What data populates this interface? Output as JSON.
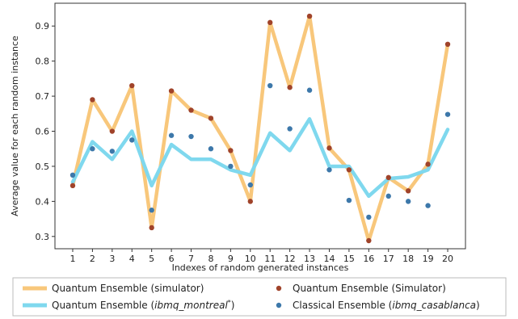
{
  "chart_data": {
    "type": "line",
    "title": "",
    "xlabel": "Indexes of random generated instances",
    "ylabel": "Average value for each random instance",
    "x": [
      1,
      2,
      3,
      4,
      5,
      6,
      7,
      8,
      9,
      10,
      11,
      12,
      13,
      14,
      15,
      16,
      17,
      18,
      19,
      20
    ],
    "x_ticks": [
      "1",
      "2",
      "3",
      "4",
      "5",
      "6",
      "7",
      "8",
      "9",
      "10",
      "11",
      "12",
      "13",
      "14",
      "15",
      "16",
      "17",
      "18",
      "19",
      "20"
    ],
    "y_ticks": [
      "0.3",
      "0.4",
      "0.5",
      "0.6",
      "0.7",
      "0.8",
      "0.9"
    ],
    "y_tick_values": [
      0.3,
      0.4,
      0.5,
      0.6,
      0.7,
      0.8,
      0.9
    ],
    "xlim": [
      0.1,
      20.9
    ],
    "ylim": [
      0.265,
      0.965
    ],
    "grid": false,
    "legend_position": "bottom, outside the plot",
    "series": [
      {
        "name": "Quantum Ensemble (simulator)",
        "kind": "line",
        "color": "#f8c77b",
        "values": [
          0.445,
          0.69,
          0.6,
          0.73,
          0.325,
          0.715,
          0.66,
          0.637,
          0.545,
          0.4,
          0.91,
          0.725,
          0.928,
          0.552,
          0.49,
          0.288,
          0.468,
          0.43,
          0.506,
          0.848
        ]
      },
      {
        "name": "Quantum Ensemble (ibmq_montreal*)",
        "kind": "line",
        "color": "#7fd8ee",
        "values": [
          0.455,
          0.57,
          0.52,
          0.6,
          0.445,
          0.562,
          0.52,
          0.52,
          0.49,
          0.475,
          0.595,
          0.545,
          0.635,
          0.5,
          0.5,
          0.415,
          0.465,
          0.47,
          0.49,
          0.605
        ]
      },
      {
        "name": "Quantum Ensemble (Simulator)",
        "kind": "scatter",
        "color": "#a0432a",
        "values": [
          0.445,
          0.69,
          0.6,
          0.73,
          0.325,
          0.715,
          0.66,
          0.637,
          0.545,
          0.4,
          0.91,
          0.725,
          0.928,
          0.552,
          0.49,
          0.288,
          0.468,
          0.43,
          0.506,
          0.848
        ]
      },
      {
        "name": "Classical Ensemble (ibmq_casablanca)",
        "kind": "scatter",
        "color": "#3d78aa",
        "values": [
          0.475,
          0.55,
          0.543,
          0.575,
          0.375,
          0.588,
          0.585,
          0.55,
          0.5,
          0.447,
          0.73,
          0.607,
          0.717,
          0.49,
          0.403,
          0.355,
          0.415,
          0.4,
          0.388,
          0.648
        ]
      }
    ],
    "legend": [
      {
        "text": "Quantum Ensemble (simulator)",
        "italic": ""
      },
      {
        "text": "Quantum Ensemble (",
        "italic": "ibmq_montreal",
        "sup": "*",
        "close": ")"
      },
      {
        "text": "Quantum Ensemble (Simulator)",
        "italic": ""
      },
      {
        "text": "Classical Ensemble (",
        "italic": "ibmq_casablanca",
        "close": ")"
      }
    ]
  }
}
